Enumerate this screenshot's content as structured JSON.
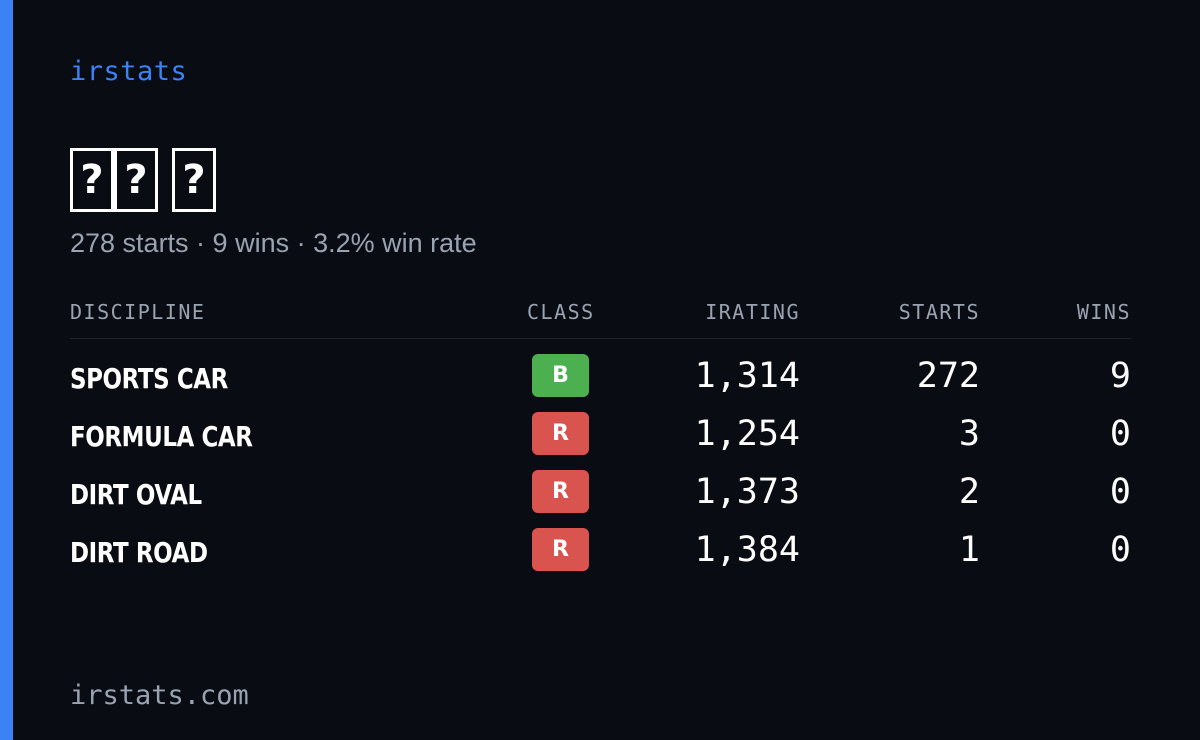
{
  "brand": "irstats",
  "driver": {
    "name_glyphs": [
      [
        "?",
        "?"
      ],
      [
        "?"
      ]
    ],
    "summary": "278 starts · 9 wins · 3.2% win rate"
  },
  "table": {
    "headers": {
      "discipline": "DISCIPLINE",
      "class": "CLASS",
      "irating": "IRATING",
      "starts": "STARTS",
      "wins": "WINS"
    },
    "rows": [
      {
        "discipline": "SPORTS CAR",
        "class": "B",
        "class_color": "#4caf50",
        "irating": "1,314",
        "starts": "272",
        "wins": "9"
      },
      {
        "discipline": "FORMULA CAR",
        "class": "R",
        "class_color": "#d9534f",
        "irating": "1,254",
        "starts": "3",
        "wins": "0"
      },
      {
        "discipline": "DIRT OVAL",
        "class": "R",
        "class_color": "#d9534f",
        "irating": "1,373",
        "starts": "2",
        "wins": "0"
      },
      {
        "discipline": "DIRT ROAD",
        "class": "R",
        "class_color": "#d9534f",
        "irating": "1,384",
        "starts": "1",
        "wins": "0"
      }
    ]
  },
  "footer": "irstats.com",
  "colors": {
    "accent": "#3b82f6",
    "background": "#0a0c13",
    "muted_text": "#9aa3b2"
  }
}
